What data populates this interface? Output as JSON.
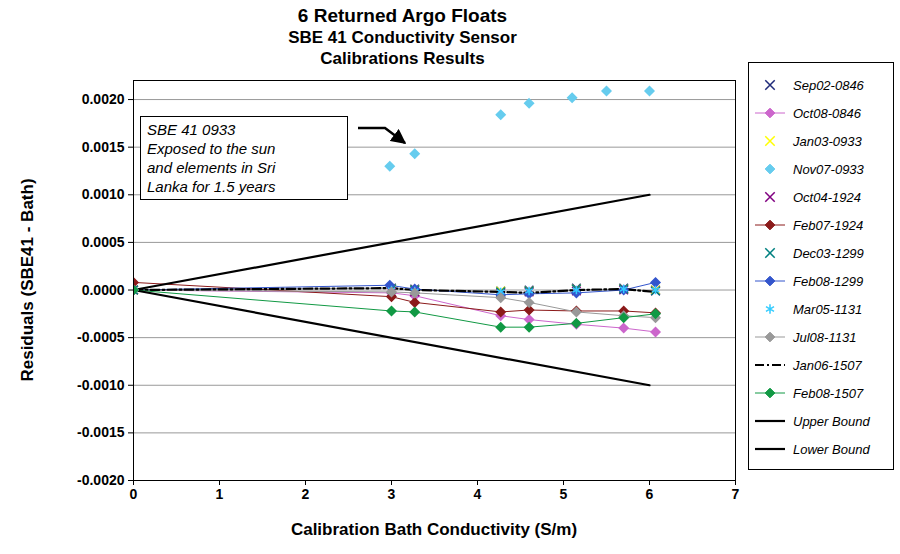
{
  "chart_data": {
    "type": "line",
    "title": "6 Returned Argo Floats",
    "subtitle": [
      "SBE 41 Conductivity Sensor",
      "Calibrations Results"
    ],
    "x_label": "Calibration Bath Conductivity (S/m)",
    "y_label": "Residuals (SBE41 - Bath)",
    "annotation": [
      "SBE 41 0933",
      "Exposed to the sun",
      "and elements in Sri",
      "Lanka for 1.5 years"
    ],
    "xlim": [
      0,
      7
    ],
    "xticks": [
      0,
      1,
      2,
      3,
      4,
      5,
      6,
      7
    ],
    "ylim": [
      -0.002,
      0.0022
    ],
    "yticks": [
      {
        "value": -0.002,
        "label": "-0.0020"
      },
      {
        "value": -0.0015,
        "label": "-0.0015"
      },
      {
        "value": -0.001,
        "label": "-0.0010"
      },
      {
        "value": -0.0005,
        "label": "-0.0005"
      },
      {
        "value": 0,
        "label": "0.0000"
      },
      {
        "value": 0.0005,
        "label": "0.0005"
      },
      {
        "value": 0.001,
        "label": "0.0010"
      },
      {
        "value": 0.0015,
        "label": "0.0015"
      },
      {
        "value": 0.002,
        "label": "0.0020"
      }
    ],
    "grid": true,
    "legend": "right",
    "series": [
      {
        "name": "Sep02-0846",
        "color": "#1f2a7a",
        "marker": "x",
        "line_style": "none",
        "x": [
          0,
          3.0,
          3.27,
          4.27,
          4.6,
          5.15,
          5.7,
          6.07
        ],
        "values": [
          0,
          2e-05,
          1e-05,
          -1e-05,
          0,
          2e-05,
          2e-05,
          0
        ]
      },
      {
        "name": "Oct08-0846",
        "color": "#cc66cc",
        "marker": "diamond",
        "line_style": "solid",
        "x": [
          0,
          3.0,
          3.27,
          4.27,
          4.6,
          5.15,
          5.7,
          6.07
        ],
        "values": [
          0,
          -3e-05,
          -6e-05,
          -0.00027,
          -0.00031,
          -0.00036,
          -0.0004,
          -0.00044
        ]
      },
      {
        "name": "Jan03-0933",
        "color": "#ffff00",
        "marker": "x",
        "line_style": "none",
        "x": [
          0,
          3.0,
          3.27,
          4.27,
          4.6,
          5.15,
          5.7,
          6.07
        ],
        "values": [
          0,
          1e-05,
          0,
          -1e-05,
          -1e-05,
          1e-05,
          1e-05,
          0
        ]
      },
      {
        "name": "Nov07-0933",
        "color": "#66ccee",
        "marker": "diamond",
        "line_style": "none",
        "x": [
          2.98,
          3.27,
          4.27,
          4.6,
          5.1,
          5.5,
          6.0
        ],
        "values": [
          0.0013,
          0.00143,
          0.00184,
          0.00196,
          0.00202,
          0.00209,
          0.00209
        ]
      },
      {
        "name": "Oct04-1924",
        "color": "#800080",
        "marker": "x",
        "line_style": "none",
        "x": [
          0,
          3.0,
          3.27,
          4.27,
          4.6,
          5.15,
          5.7,
          6.07
        ],
        "values": [
          0,
          -2e-05,
          -2e-05,
          -3e-05,
          -2e-05,
          -1e-05,
          0,
          -1e-05
        ]
      },
      {
        "name": "Feb07-1924",
        "color": "#8b1a1a",
        "marker": "diamond",
        "line_style": "solid",
        "x": [
          0,
          3.0,
          3.27,
          4.27,
          4.6,
          5.15,
          5.7,
          6.07
        ],
        "values": [
          8e-05,
          -7e-05,
          -0.00013,
          -0.00023,
          -0.00021,
          -0.00022,
          -0.00022,
          -0.00024
        ]
      },
      {
        "name": "Dec03-1299",
        "color": "#008080",
        "marker": "x",
        "line_style": "none",
        "x": [
          0,
          3.0,
          3.27,
          4.27,
          4.6,
          5.15,
          5.7,
          6.07
        ],
        "values": [
          0,
          1e-05,
          0,
          -2e-05,
          -1e-05,
          1e-05,
          1e-05,
          -1e-05
        ]
      },
      {
        "name": "Feb08-1299",
        "color": "#3355cc",
        "marker": "diamond",
        "line_style": "solid",
        "x": [
          0,
          2.98,
          3.27,
          4.27,
          4.6,
          5.15,
          5.7,
          6.07
        ],
        "values": [
          0,
          5e-05,
          1e-05,
          -5e-05,
          -4e-05,
          -3e-05,
          0,
          8e-05
        ]
      },
      {
        "name": "Mar05-1131",
        "color": "#33ccff",
        "marker": "asterisk",
        "line_style": "none",
        "x": [
          0,
          3.0,
          3.27,
          4.27,
          4.6,
          5.15,
          5.7,
          6.07
        ],
        "values": [
          0,
          0,
          -1e-05,
          -2e-05,
          -1e-05,
          0,
          1e-05,
          0
        ]
      },
      {
        "name": "Jul08-1131",
        "color": "#999999",
        "marker": "diamond",
        "line_style": "solid",
        "x": [
          0,
          3.0,
          3.27,
          4.27,
          4.6,
          5.15,
          5.7,
          6.07
        ],
        "values": [
          0,
          -2e-05,
          -3e-05,
          -8e-05,
          -0.00013,
          -0.00023,
          -0.00027,
          -0.00029
        ]
      },
      {
        "name": "Jan06-1507",
        "color": "#000000",
        "marker": "none",
        "line_style": "dashdot",
        "x": [
          0,
          3.0,
          3.27,
          4.27,
          4.6,
          5.15,
          5.7,
          6.07
        ],
        "values": [
          0,
          2e-05,
          0,
          -2e-05,
          -3e-05,
          0,
          1e-05,
          -2e-05
        ]
      },
      {
        "name": "Feb08-1507",
        "color": "#119944",
        "marker": "diamond",
        "line_style": "solid",
        "x": [
          0,
          3.0,
          3.27,
          4.27,
          4.6,
          5.15,
          5.7,
          6.07
        ],
        "values": [
          0,
          -0.00022,
          -0.00023,
          -0.00039,
          -0.00039,
          -0.00035,
          -0.00029,
          -0.00025
        ]
      },
      {
        "name": "Upper Bound",
        "color": "#000000",
        "marker": "none",
        "line_style": "bold",
        "x": [
          0,
          6
        ],
        "values": [
          0,
          0.001
        ]
      },
      {
        "name": "Lower Bound",
        "color": "#000000",
        "marker": "none",
        "line_style": "bold",
        "x": [
          0,
          6
        ],
        "values": [
          0,
          -0.001
        ]
      }
    ]
  }
}
